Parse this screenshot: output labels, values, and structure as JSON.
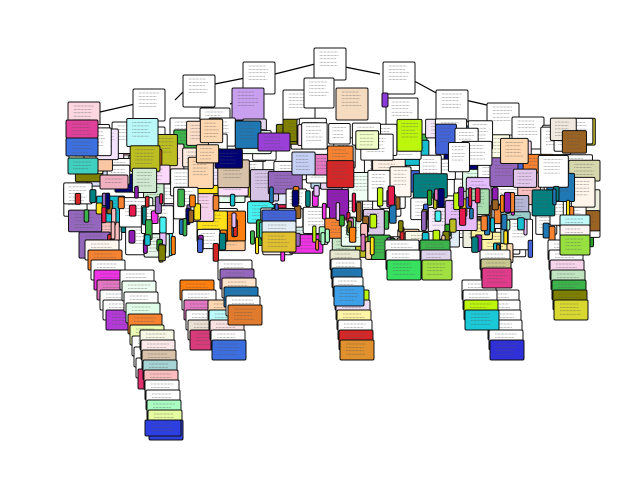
{
  "diagram": {
    "type": "decision-tree",
    "node_text_readable": false,
    "palette": [
      "#e6194b",
      "#3cb44b",
      "#ffe119",
      "#4363d8",
      "#f58231",
      "#911eb4",
      "#46f0f0",
      "#f032e6",
      "#bcf60c",
      "#fabebe",
      "#008080",
      "#e6beff",
      "#9a6324",
      "#aaffc3",
      "#808000",
      "#ffd8b1",
      "#000075",
      "#ff7f0e",
      "#1f77b4",
      "#2ca02c",
      "#9467bd",
      "#17becf",
      "#d62728",
      "#e377c2",
      "#bcbd22"
    ],
    "background": "#ffffff",
    "edge_color": "#000000",
    "node_border": "#111111"
  }
}
